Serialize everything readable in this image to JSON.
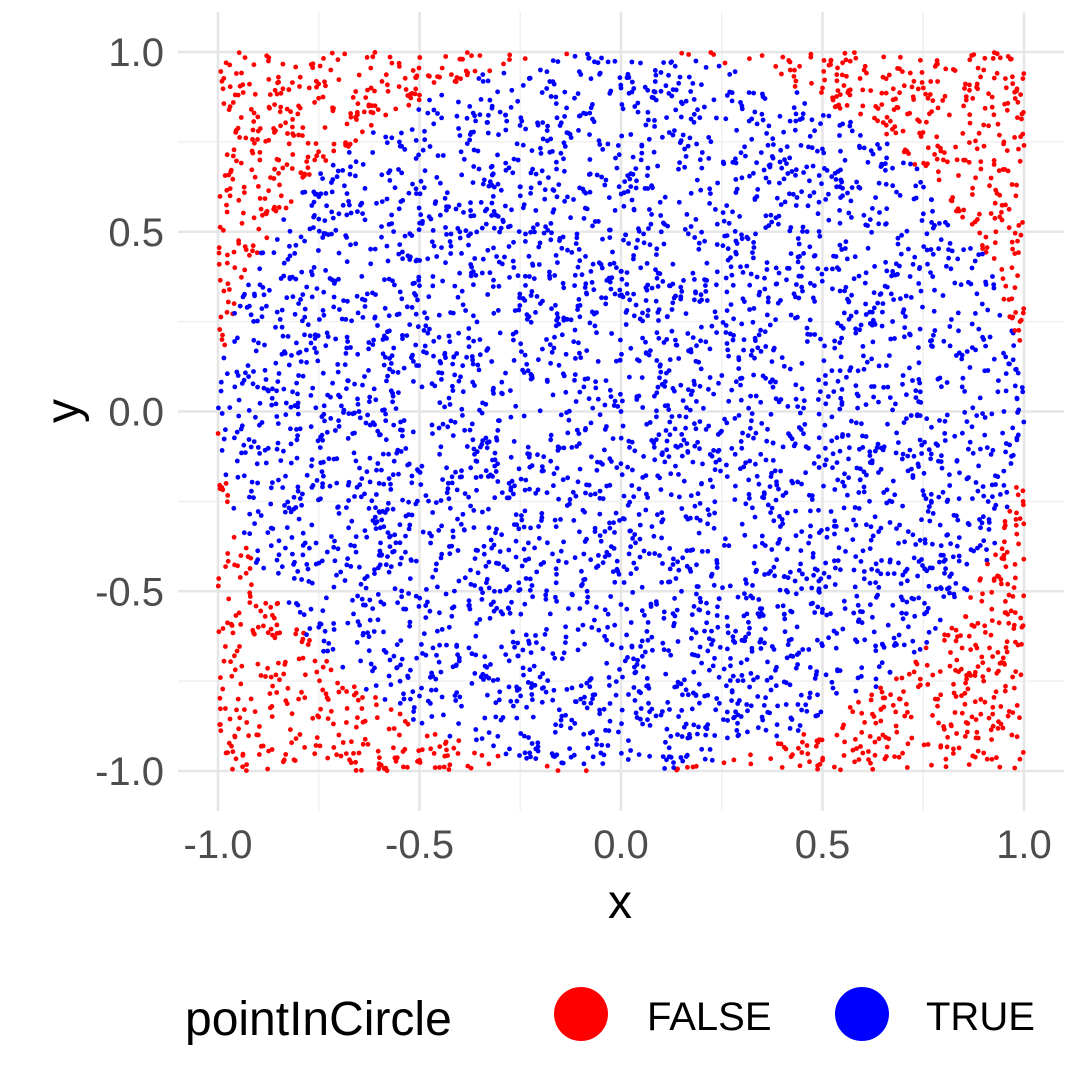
{
  "chart_data": {
    "type": "scatter",
    "title": "",
    "xlabel": "x",
    "ylabel": "y",
    "xlim": [
      -1.0,
      1.0
    ],
    "ylim": [
      -1.0,
      1.0
    ],
    "x_ticks": [
      "-1.0",
      "-0.5",
      "0.0",
      "0.5",
      "1.0"
    ],
    "y_ticks": [
      "-1.0",
      "-0.5",
      "0.0",
      "0.5",
      "1.0"
    ],
    "grid": true,
    "legend": {
      "title": "pointInCircle",
      "position": "bottom",
      "entries": [
        {
          "label": "FALSE",
          "color": "#ff0000"
        },
        {
          "label": "TRUE",
          "color": "#0000ff"
        }
      ]
    },
    "series": [
      {
        "name": "FALSE",
        "color": "#ff0000",
        "points": [
          [
            -0.98,
            0.97
          ],
          [
            -0.95,
            0.88
          ],
          [
            -0.9,
            0.78
          ],
          [
            -0.85,
            0.93
          ],
          [
            -0.8,
            0.85
          ],
          [
            -0.76,
            0.7
          ],
          [
            -0.72,
            0.95
          ],
          [
            -0.68,
            0.8
          ],
          [
            -0.62,
            0.9
          ],
          [
            -0.55,
            0.96
          ],
          [
            -0.5,
            0.88
          ],
          [
            -0.45,
            0.93
          ],
          [
            -0.4,
            0.98
          ],
          [
            -0.35,
            0.99
          ],
          [
            -0.97,
            0.6
          ],
          [
            -0.93,
            0.45
          ],
          [
            -0.96,
            0.3
          ],
          [
            -0.99,
            0.2
          ],
          [
            -0.88,
            0.55
          ],
          [
            -0.98,
            -0.2
          ],
          [
            -0.96,
            -0.35
          ],
          [
            -0.93,
            -0.45
          ],
          [
            -0.9,
            -0.6
          ],
          [
            -0.85,
            -0.7
          ],
          [
            -0.8,
            -0.8
          ],
          [
            -0.75,
            -0.85
          ],
          [
            -0.7,
            -0.9
          ],
          [
            -0.65,
            -0.95
          ],
          [
            -0.6,
            -0.98
          ],
          [
            -0.55,
            -0.9
          ],
          [
            -0.5,
            -0.97
          ],
          [
            -0.45,
            -0.99
          ],
          [
            -0.95,
            -0.8
          ],
          [
            -0.98,
            -0.95
          ],
          [
            -0.9,
            -0.9
          ],
          [
            0.35,
            0.99
          ],
          [
            0.42,
            0.95
          ],
          [
            0.5,
            0.9
          ],
          [
            0.55,
            0.97
          ],
          [
            0.6,
            0.85
          ],
          [
            0.65,
            0.93
          ],
          [
            0.7,
            0.78
          ],
          [
            0.75,
            0.9
          ],
          [
            0.8,
            0.7
          ],
          [
            0.85,
            0.85
          ],
          [
            0.9,
            0.95
          ],
          [
            0.95,
            0.75
          ],
          [
            0.98,
            0.6
          ],
          [
            0.93,
            0.5
          ],
          [
            0.97,
            0.4
          ],
          [
            0.99,
            0.25
          ],
          [
            0.88,
            0.65
          ],
          [
            0.98,
            -0.3
          ],
          [
            0.95,
            -0.4
          ],
          [
            0.92,
            -0.55
          ],
          [
            0.88,
            -0.65
          ],
          [
            0.83,
            -0.72
          ],
          [
            0.78,
            -0.8
          ],
          [
            0.72,
            -0.85
          ],
          [
            0.65,
            -0.9
          ],
          [
            0.6,
            -0.95
          ],
          [
            0.55,
            -0.88
          ],
          [
            0.5,
            -0.97
          ],
          [
            0.45,
            -0.92
          ],
          [
            0.4,
            -0.99
          ],
          [
            0.97,
            -0.9
          ],
          [
            0.9,
            -0.95
          ],
          [
            0.95,
            -0.7
          ]
        ]
      },
      {
        "name": "TRUE",
        "color": "#0000ff",
        "points": [
          [
            0.0,
            0.0
          ],
          [
            0.12,
            0.35
          ],
          [
            -0.25,
            0.6
          ],
          [
            0.4,
            -0.3
          ],
          [
            -0.6,
            -0.2
          ],
          [
            0.7,
            0.1
          ],
          [
            -0.1,
            -0.8
          ],
          [
            0.3,
            0.85
          ],
          [
            -0.8,
            0.3
          ],
          [
            0.55,
            0.6
          ],
          [
            -0.45,
            -0.65
          ],
          [
            0.8,
            -0.4
          ],
          [
            -0.2,
            0.95
          ],
          [
            0.15,
            -0.5
          ],
          [
            -0.7,
            0.55
          ],
          [
            0.65,
            -0.65
          ],
          [
            -0.35,
            0.2
          ],
          [
            0.9,
            0.2
          ],
          [
            -0.9,
            -0.1
          ],
          [
            0.25,
            0.1
          ],
          [
            -0.15,
            -0.3
          ],
          [
            0.45,
            0.4
          ],
          [
            -0.55,
            0.75
          ],
          [
            0.05,
            0.7
          ],
          [
            -0.05,
            -0.95
          ],
          [
            0.85,
            0.45
          ],
          [
            -0.85,
            -0.45
          ],
          [
            0.35,
            -0.85
          ],
          [
            -0.4,
            0.5
          ],
          [
            0.6,
            -0.1
          ],
          [
            -0.65,
            0.0
          ],
          [
            0.2,
            -0.2
          ],
          [
            -0.3,
            -0.5
          ],
          [
            0.75,
            0.55
          ],
          [
            -0.75,
            -0.6
          ],
          [
            0.1,
            0.5
          ],
          [
            -0.5,
            0.35
          ],
          [
            0.5,
            -0.55
          ],
          [
            0.95,
            0.0
          ],
          [
            -0.95,
            0.1
          ],
          [
            0.0,
            0.9
          ],
          [
            0.3,
            0.65
          ],
          [
            -0.2,
            0.3
          ],
          [
            0.4,
            0.15
          ],
          [
            -0.6,
            -0.4
          ],
          [
            0.65,
            0.3
          ],
          [
            -0.1,
            0.15
          ],
          [
            0.2,
            -0.7
          ],
          [
            -0.8,
            0.1
          ],
          [
            0.55,
            0.8
          ]
        ]
      }
    ],
    "point_generation": {
      "FALSE_count": 1080,
      "TRUE_count": 3920,
      "note_shown": false
    }
  }
}
